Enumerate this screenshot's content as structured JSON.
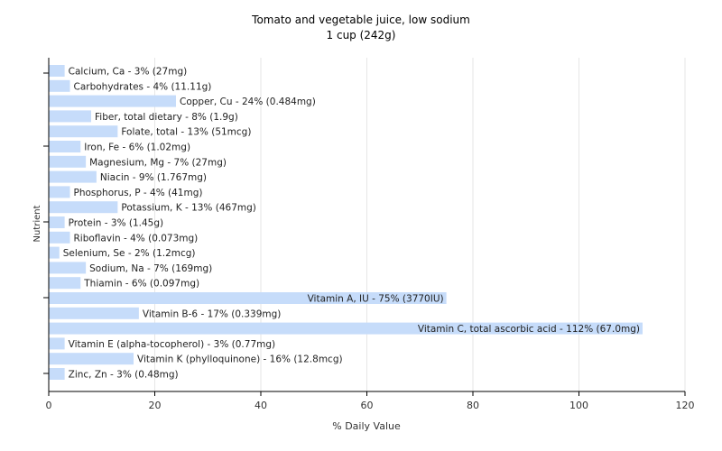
{
  "chart_data": {
    "type": "bar",
    "orientation": "horizontal",
    "title": "Tomato and vegetable juice, low sodium",
    "subtitle": "1 cup (242g)",
    "xlabel": "% Daily Value",
    "ylabel": "Nutrient",
    "xlim": [
      0,
      120
    ],
    "xticks": [
      0,
      20,
      40,
      60,
      80,
      100,
      120
    ],
    "grid": true,
    "bar_color": "#c6dcfa",
    "grid_color": "#e6e6e6",
    "categories": [
      "Calcium, Ca",
      "Carbohydrates",
      "Copper, Cu",
      "Fiber, total dietary",
      "Folate, total",
      "Iron, Fe",
      "Magnesium, Mg",
      "Niacin",
      "Phosphorus, P",
      "Potassium, K",
      "Protein",
      "Riboflavin",
      "Selenium, Se",
      "Sodium, Na",
      "Thiamin",
      "Vitamin A, IU",
      "Vitamin B-6",
      "Vitamin C, total ascorbic acid",
      "Vitamin E (alpha-tocopherol)",
      "Vitamin K (phylloquinone)",
      "Zinc, Zn"
    ],
    "values": [
      3,
      4,
      24,
      8,
      13,
      6,
      7,
      9,
      4,
      13,
      3,
      4,
      2,
      7,
      6,
      75,
      17,
      112,
      3,
      16,
      3
    ],
    "labels": [
      "Calcium, Ca - 3% (27mg)",
      "Carbohydrates - 4% (11.11g)",
      "Copper, Cu - 24% (0.484mg)",
      "Fiber, total dietary - 8% (1.9g)",
      "Folate, total - 13% (51mcg)",
      "Iron, Fe - 6% (1.02mg)",
      "Magnesium, Mg - 7% (27mg)",
      "Niacin - 9% (1.767mg)",
      "Phosphorus, P - 4% (41mg)",
      "Potassium, K - 13% (467mg)",
      "Protein - 3% (1.45g)",
      "Riboflavin - 4% (0.073mg)",
      "Selenium, Se - 2% (1.2mcg)",
      "Sodium, Na - 7% (169mg)",
      "Thiamin - 6% (0.097mg)",
      "Vitamin A, IU - 75% (3770IU)",
      "Vitamin B-6 - 17% (0.339mg)",
      "Vitamin C, total ascorbic acid - 112% (67.0mg)",
      "Vitamin E (alpha-tocopherol) - 3% (0.77mg)",
      "Vitamin K (phylloquinone) - 16% (12.8mcg)",
      "Zinc, Zn - 3% (0.48mg)"
    ]
  }
}
